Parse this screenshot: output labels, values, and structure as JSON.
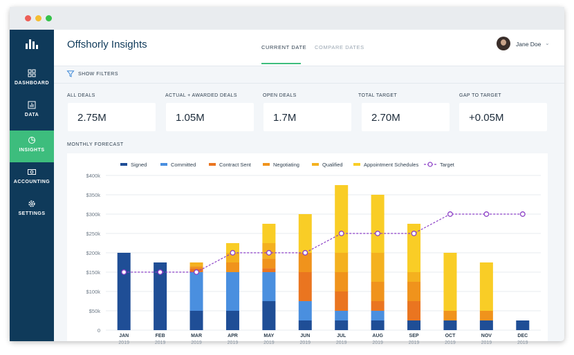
{
  "app": {
    "title": "Offshorly Insights"
  },
  "sidebar": {
    "items": [
      {
        "label": "DASHBOARD",
        "icon": "grid-icon",
        "active": false
      },
      {
        "label": "DATA",
        "icon": "bar-chart-icon",
        "active": false
      },
      {
        "label": "INSIGHTS",
        "icon": "pie-chart-icon",
        "active": true
      },
      {
        "label": "ACCOUNTING",
        "icon": "money-icon",
        "active": false
      },
      {
        "label": "SETTINGS",
        "icon": "gear-icon",
        "active": false
      }
    ]
  },
  "header": {
    "tabs": [
      {
        "label": "CURRENT DATE",
        "active": true
      },
      {
        "label": "COMPARE DATES",
        "active": false
      }
    ],
    "user": {
      "name": "Jane Doe"
    }
  },
  "filters": {
    "label": "SHOW FILTERS"
  },
  "kpis": [
    {
      "label": "ALL DEALS",
      "value": "2.75M"
    },
    {
      "label": "ACTUAL + AWARDED DEALS",
      "value": "1.05M"
    },
    {
      "label": "OPEN DEALS",
      "value": "1.7M"
    },
    {
      "label": "TOTAL TARGET",
      "value": "2.70M"
    },
    {
      "label": "GAP TO TARGET",
      "value": "+0.05M"
    }
  ],
  "forecast": {
    "label": "MONTHLY FORECAST"
  },
  "colors": {
    "sidebar": "#0f3a5a",
    "active": "#3dbd7d"
  },
  "chart_data": {
    "type": "bar",
    "stacked": true,
    "categories": [
      "JAN",
      "FEB",
      "MAR",
      "APR",
      "MAY",
      "JUN",
      "JUL",
      "AUG",
      "SEP",
      "OCT",
      "NOV",
      "DEC"
    ],
    "category_sub": "2019",
    "ylim": [
      0,
      400000
    ],
    "yticks": [
      "0",
      "$50k",
      "$100k",
      "$150k",
      "$200k",
      "$250k",
      "$300k",
      "$350k",
      "$400k"
    ],
    "grid": "horizontal",
    "legend_position": "top",
    "series": [
      {
        "name": "Signed",
        "color": "#1f4e96",
        "values": [
          200000,
          175000,
          50000,
          50000,
          75000,
          25000,
          25000,
          25000,
          25000,
          25000,
          25000,
          25000
        ]
      },
      {
        "name": "Committed",
        "color": "#4a8fdf",
        "values": [
          0,
          0,
          100000,
          100000,
          75000,
          50000,
          25000,
          25000,
          0,
          0,
          0,
          0
        ]
      },
      {
        "name": "Contract Sent",
        "color": "#ea7520",
        "values": [
          0,
          0,
          10000,
          0,
          10000,
          75000,
          50000,
          25000,
          50000,
          0,
          0,
          0
        ]
      },
      {
        "name": "Negotiating",
        "color": "#f0931c",
        "values": [
          0,
          0,
          5000,
          25000,
          25000,
          50000,
          50000,
          50000,
          50000,
          25000,
          25000,
          0
        ]
      },
      {
        "name": "Qualified",
        "color": "#f4b11f",
        "values": [
          0,
          0,
          10000,
          25000,
          40000,
          0,
          50000,
          75000,
          25000,
          0,
          0,
          0
        ]
      },
      {
        "name": "Appointment Schedules",
        "color": "#f9cd26",
        "values": [
          0,
          0,
          0,
          25000,
          50000,
          100000,
          175000,
          150000,
          125000,
          150000,
          125000,
          0
        ]
      }
    ],
    "target": {
      "name": "Target",
      "color": "#8b3fc6",
      "values": [
        150000,
        150000,
        150000,
        200000,
        200000,
        200000,
        250000,
        250000,
        250000,
        300000,
        300000,
        300000
      ]
    }
  }
}
